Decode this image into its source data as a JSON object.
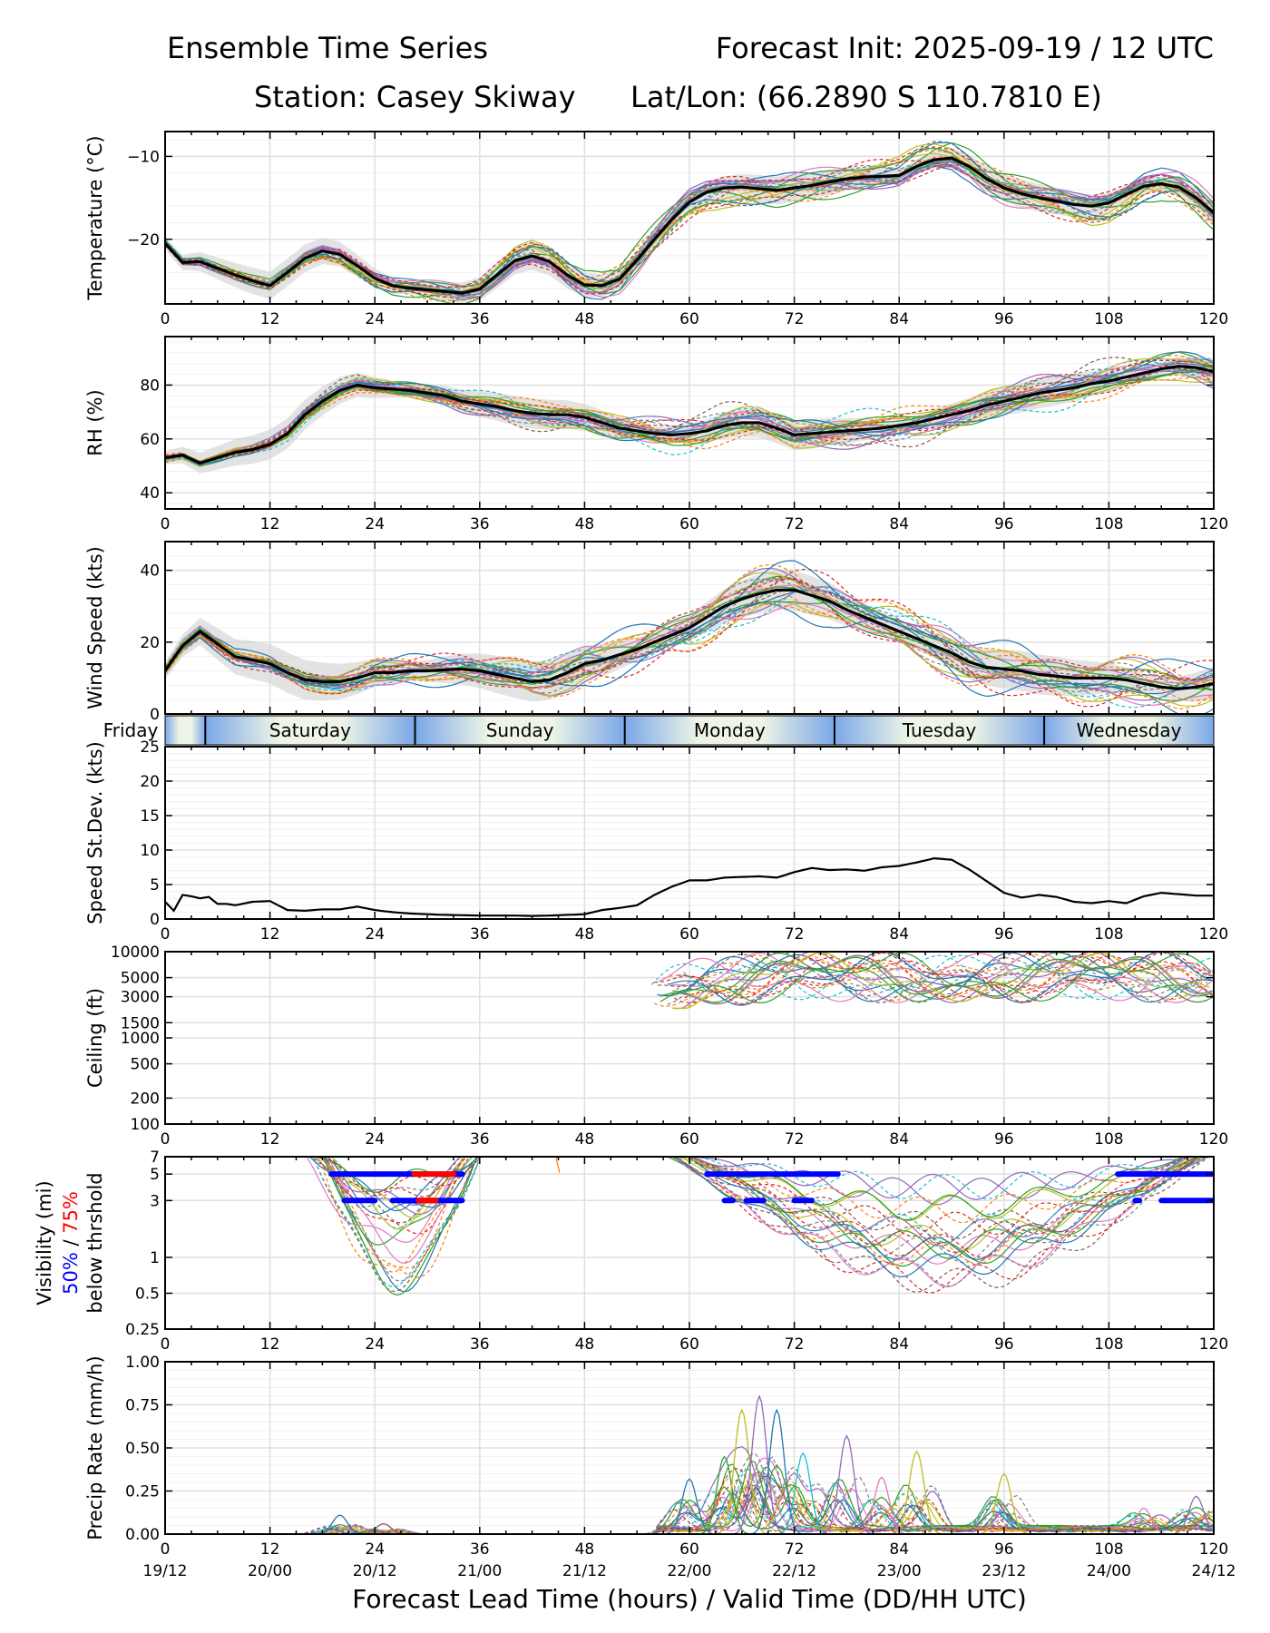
{
  "header": {
    "title_left": "Ensemble Time Series",
    "title_right": "Forecast Init: 2025-09-19 / 12 UTC",
    "station": "Station: Casey Skiway",
    "latlon": "Lat/Lon: (66.2890 S 110.7810 E)"
  },
  "colors": {
    "mean": "#000000",
    "spread": "#d0d0d0",
    "grid": "#e0e0e0",
    "vis50": "#0000ff",
    "vis75": "#ff0000",
    "members": [
      "#1f77b4",
      "#ff7f0e",
      "#2ca02c",
      "#d62728",
      "#9467bd",
      "#8c564b",
      "#e377c2",
      "#7f7f7f",
      "#bcbd22",
      "#17becf"
    ]
  },
  "x_axis": {
    "range": [
      0,
      120
    ],
    "ticks": [
      0,
      12,
      24,
      36,
      48,
      60,
      72,
      84,
      96,
      108,
      120
    ],
    "tick_labels": [
      "0",
      "12",
      "24",
      "36",
      "48",
      "60",
      "72",
      "84",
      "96",
      "108",
      "120"
    ],
    "valid_time_labels": [
      "19/12",
      "20/00",
      "20/12",
      "21/00",
      "21/12",
      "22/00",
      "22/12",
      "23/00",
      "23/12",
      "24/00",
      "24/12"
    ],
    "xlabel": "Forecast Lead Time (hours) / Valid Time (DD/HH UTC)"
  },
  "day_band": {
    "labels": [
      "Friday",
      "Saturday",
      "Sunday",
      "Monday",
      "Tuesday",
      "Wednesday"
    ],
    "separators_hours": [
      4.6,
      28.6,
      52.6,
      76.6,
      100.6
    ]
  },
  "chart_data": [
    {
      "type": "line",
      "panel": "temperature",
      "ylabel": "Temperature (°C)",
      "ylim": [
        -27.8,
        -7
      ],
      "yticks": [
        -20,
        -10
      ],
      "ytick_labels": [
        "−20",
        "−10"
      ],
      "mean": {
        "x": [
          0,
          2,
          4,
          6,
          8,
          10,
          12,
          14,
          16,
          18,
          20,
          22,
          24,
          26,
          28,
          30,
          32,
          34,
          36,
          38,
          40,
          42,
          44,
          46,
          48,
          50,
          52,
          54,
          56,
          58,
          60,
          62,
          64,
          66,
          68,
          70,
          72,
          74,
          76,
          78,
          80,
          82,
          84,
          86,
          88,
          90,
          92,
          94,
          96,
          98,
          100,
          102,
          104,
          106,
          108,
          110,
          112,
          114,
          116,
          118,
          120
        ],
        "y": [
          -20.5,
          -22.8,
          -22.7,
          -23.5,
          -24.3,
          -25,
          -25.6,
          -24,
          -22.3,
          -21.4,
          -21.8,
          -23.2,
          -24.7,
          -25.6,
          -25.9,
          -26.1,
          -26.3,
          -26.5,
          -26,
          -24.3,
          -22.6,
          -22,
          -22.7,
          -24.3,
          -25.5,
          -25.6,
          -24.8,
          -22.5,
          -20,
          -17.6,
          -15.5,
          -14.3,
          -13.8,
          -13.7,
          -13.9,
          -14.1,
          -13.8,
          -13.5,
          -13.1,
          -12.7,
          -12.5,
          -12.4,
          -12.3,
          -11.2,
          -10.4,
          -10.2,
          -11.2,
          -12.7,
          -13.8,
          -14.5,
          -15,
          -15.4,
          -15.8,
          -16,
          -15.6,
          -14.6,
          -13.6,
          -13.3,
          -13.7,
          -15,
          -16.8
        ]
      },
      "spread_width": 1.2,
      "member_count": 24,
      "member_amplitude": 1.5
    },
    {
      "type": "line",
      "panel": "relative_humidity",
      "ylabel": "RH (%)",
      "ylim": [
        34,
        98
      ],
      "yticks": [
        40,
        60,
        80
      ],
      "ytick_labels": [
        "40",
        "60",
        "80"
      ],
      "mean": {
        "x": [
          0,
          2,
          4,
          6,
          8,
          10,
          12,
          14,
          16,
          18,
          20,
          22,
          24,
          26,
          28,
          30,
          32,
          34,
          36,
          38,
          40,
          42,
          44,
          46,
          48,
          50,
          52,
          54,
          56,
          58,
          60,
          62,
          64,
          66,
          68,
          70,
          72,
          74,
          76,
          78,
          80,
          82,
          84,
          86,
          88,
          90,
          92,
          94,
          96,
          98,
          100,
          102,
          104,
          106,
          108,
          110,
          112,
          114,
          116,
          118,
          120
        ],
        "y": [
          53,
          54,
          51,
          53,
          55,
          56,
          58,
          62,
          69,
          74,
          78,
          80,
          79,
          78.5,
          78,
          77,
          76,
          74,
          73,
          72,
          70.5,
          69.5,
          69,
          69,
          68,
          66,
          64,
          63,
          62,
          61.5,
          62,
          63,
          65,
          66,
          66,
          64,
          61.5,
          62,
          62.5,
          63,
          63.5,
          64,
          65,
          66,
          67.5,
          69,
          70.5,
          72.5,
          74,
          75.5,
          77,
          78,
          79,
          80.5,
          81.5,
          83,
          84.5,
          86,
          87,
          86.5,
          85
        ]
      },
      "spread_width": 4,
      "member_count": 24,
      "member_amplitude": 5
    },
    {
      "type": "line",
      "panel": "wind_speed",
      "ylabel": "Wind Speed (kts)",
      "ylim": [
        0,
        48
      ],
      "yticks": [
        0,
        20,
        40
      ],
      "ytick_labels": [
        "0",
        "20",
        "40"
      ],
      "mean": {
        "x": [
          0,
          2,
          4,
          6,
          8,
          10,
          12,
          14,
          16,
          18,
          20,
          22,
          24,
          26,
          28,
          30,
          32,
          34,
          36,
          38,
          40,
          42,
          44,
          46,
          48,
          50,
          52,
          54,
          56,
          58,
          60,
          62,
          64,
          66,
          68,
          70,
          72,
          74,
          76,
          78,
          80,
          82,
          84,
          86,
          88,
          90,
          92,
          94,
          96,
          98,
          100,
          102,
          104,
          106,
          108,
          110,
          112,
          114,
          116,
          118,
          120
        ],
        "y": [
          12,
          19,
          23,
          19.5,
          16,
          15,
          14,
          11.5,
          9.5,
          9,
          9,
          10,
          11.5,
          11.5,
          12,
          12,
          12.3,
          12.5,
          12,
          11,
          10,
          9,
          9.5,
          11.5,
          14,
          15,
          16.5,
          18,
          20,
          22,
          24,
          27,
          30,
          32,
          33.5,
          34.5,
          34.5,
          33,
          31.5,
          29,
          27,
          25,
          23,
          21,
          19,
          17,
          14.5,
          13,
          12.5,
          12,
          11,
          10.5,
          10,
          10,
          10,
          9.5,
          8.5,
          7.5,
          7,
          7.5,
          8.5
        ]
      },
      "spread_width": 4,
      "member_count": 24,
      "member_amplitude": 5
    },
    {
      "type": "line",
      "panel": "speed_std_dev",
      "ylabel": "Speed St.Dev. (kts)",
      "ylim": [
        0,
        25
      ],
      "yticks": [
        0,
        5,
        10,
        15,
        20,
        25
      ],
      "ytick_labels": [
        "0",
        "5",
        "10",
        "15",
        "20",
        "25"
      ],
      "mean": {
        "x": [
          0,
          1,
          2,
          3,
          4,
          5,
          6,
          7,
          8,
          10,
          12,
          14,
          16,
          18,
          20,
          22,
          24,
          26,
          28,
          30,
          32,
          34,
          36,
          38,
          40,
          42,
          44,
          46,
          48,
          50,
          52,
          54,
          56,
          58,
          60,
          62,
          64,
          66,
          68,
          70,
          72,
          74,
          76,
          78,
          80,
          82,
          84,
          86,
          88,
          90,
          92,
          94,
          96,
          98,
          100,
          102,
          104,
          106,
          108,
          110,
          112,
          114,
          116,
          118,
          120
        ],
        "y": [
          2.5,
          1.2,
          3.5,
          3.3,
          3,
          3.2,
          2.2,
          2.2,
          2,
          2.5,
          2.6,
          1.3,
          1.2,
          1.4,
          1.4,
          1.8,
          1.3,
          1,
          0.8,
          0.7,
          0.6,
          0.55,
          0.5,
          0.5,
          0.5,
          0.45,
          0.5,
          0.6,
          0.7,
          1.3,
          1.6,
          2,
          3.5,
          4.7,
          5.6,
          5.6,
          6,
          6.1,
          6.2,
          6,
          6.8,
          7.4,
          7.1,
          7.2,
          7,
          7.5,
          7.7,
          8.2,
          8.8,
          8.6,
          7.2,
          5.5,
          3.8,
          3.1,
          3.5,
          3.2,
          2.5,
          2.3,
          2.6,
          2.3,
          3.3,
          3.8,
          3.6,
          3.4,
          3.4
        ]
      }
    },
    {
      "type": "line",
      "panel": "ceiling",
      "ylabel": "Ceiling (ft)",
      "yscale": "log",
      "ylim": [
        100,
        10000
      ],
      "yticks": [
        100,
        200,
        500,
        1000,
        1500,
        3000,
        5000,
        10000
      ],
      "ytick_labels": [
        "100",
        "200",
        "500",
        "1000",
        "1500",
        "3000",
        "5000",
        "10000"
      ],
      "member_segments": [
        {
          "x_range": [
            55.5,
            120
          ],
          "y_range": [
            2200,
            10000
          ]
        }
      ],
      "member_count": 24
    },
    {
      "type": "line",
      "panel": "visibility",
      "ylabel_lines": [
        "Visibility (mi)",
        "50% / 75%",
        "below thrshold"
      ],
      "ylabel_50": "50%",
      "ylabel_sep": " / ",
      "ylabel_75": "75%",
      "yscale": "log",
      "ylim": [
        0.25,
        7
      ],
      "yticks": [
        0.25,
        0.5,
        1,
        3,
        5,
        7
      ],
      "ytick_labels": [
        "0.25",
        "0.5",
        "1",
        "3",
        "5",
        "7"
      ],
      "member_segments": [
        {
          "x_range": [
            16,
            37
          ],
          "y_min": 0.6
        },
        {
          "x_range": [
            44,
            47
          ],
          "y_min": 3.5
        },
        {
          "x_range": [
            57,
            120
          ],
          "y_min": 0.55
        }
      ],
      "threshold_50_pct_below": [
        {
          "threshold": 5,
          "x_range": [
            19,
            34
          ]
        },
        {
          "threshold": 3,
          "x_range": [
            20.5,
            24
          ]
        },
        {
          "threshold": 3,
          "x_range": [
            26,
            34
          ]
        },
        {
          "threshold": 5,
          "x_range": [
            62,
            77
          ]
        },
        {
          "threshold": 3,
          "x_range": [
            64,
            65
          ]
        },
        {
          "threshold": 3,
          "x_range": [
            66.5,
            68.5
          ]
        },
        {
          "threshold": 3,
          "x_range": [
            72,
            74
          ]
        },
        {
          "threshold": 5,
          "x_range": [
            109,
            120
          ]
        },
        {
          "threshold": 3,
          "x_range": [
            111,
            111.5
          ]
        },
        {
          "threshold": 3,
          "x_range": [
            114,
            120
          ]
        }
      ],
      "threshold_75_pct_below": [
        {
          "threshold": 5,
          "x_range": [
            28.5,
            33
          ]
        },
        {
          "threshold": 3,
          "x_range": [
            29,
            31
          ]
        }
      ],
      "member_count": 24
    },
    {
      "type": "line",
      "panel": "precip_rate",
      "ylabel": "Precip Rate (mm/h)",
      "ylim": [
        0,
        1
      ],
      "yticks": [
        0,
        0.25,
        0.5,
        0.75,
        1
      ],
      "ytick_labels": [
        "0.00",
        "0.25",
        "0.50",
        "0.75",
        "1.00"
      ],
      "peaks": [
        {
          "x": 20,
          "y": 0.11
        },
        {
          "x": 25,
          "y": 0.06
        },
        {
          "x": 60,
          "y": 0.32
        },
        {
          "x": 64,
          "y": 0.45
        },
        {
          "x": 66,
          "y": 0.72
        },
        {
          "x": 68,
          "y": 0.8
        },
        {
          "x": 70,
          "y": 0.72
        },
        {
          "x": 73,
          "y": 0.47
        },
        {
          "x": 78,
          "y": 0.57
        },
        {
          "x": 82,
          "y": 0.33
        },
        {
          "x": 86,
          "y": 0.48
        },
        {
          "x": 96,
          "y": 0.35
        },
        {
          "x": 112,
          "y": 0.15
        },
        {
          "x": 118,
          "y": 0.22
        }
      ],
      "member_count": 24
    }
  ]
}
